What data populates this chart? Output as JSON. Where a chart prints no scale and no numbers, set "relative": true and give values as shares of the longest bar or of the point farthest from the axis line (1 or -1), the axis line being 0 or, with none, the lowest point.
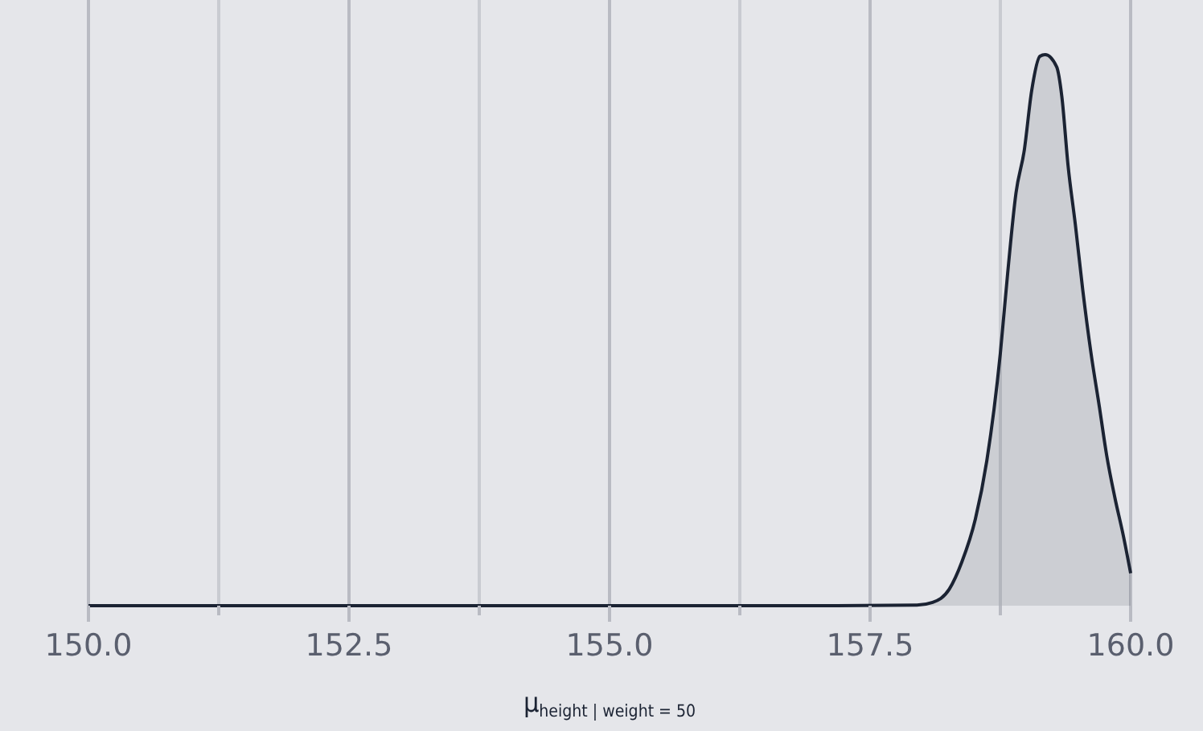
{
  "chart_data": {
    "type": "area",
    "relative": true,
    "xlabel": "μ$_{height | weight = 50}$",
    "grid": "x",
    "xlim": [
      150,
      160
    ],
    "xticks": [
      {
        "value": 150,
        "label": "150.0"
      },
      {
        "value": 151.25,
        "label": null
      },
      {
        "value": 152.5,
        "label": "152.5"
      },
      {
        "value": 153.75,
        "label": null
      },
      {
        "value": 155,
        "label": "155.0"
      },
      {
        "value": 156.25,
        "label": null
      },
      {
        "value": 157.5,
        "label": "157.5"
      },
      {
        "value": 158.75,
        "label": null
      },
      {
        "value": 160,
        "label": "160.0"
      }
    ],
    "x": [
      150,
      157.18,
      157.95,
      158.1,
      158.26,
      158.38,
      158.51,
      158.62,
      158.75,
      158.82,
      158.9,
      158.98,
      159.05,
      159.13,
      159.18,
      159.29,
      159.34,
      159.4,
      159.47,
      159.54,
      159.62,
      159.7,
      159.77,
      159.85,
      159.93,
      160
    ],
    "series": [
      {
        "color": "#1b2333",
        "values": [
          0,
          0,
          0.001,
          0.006,
          0.03,
          0.079,
          0.157,
          0.263,
          0.458,
          0.603,
          0.749,
          0.827,
          0.934,
          0.997,
          1,
          0.978,
          0.924,
          0.798,
          0.691,
          0.574,
          0.458,
          0.361,
          0.273,
          0.195,
          0.127,
          0.059
        ]
      }
    ]
  }
}
